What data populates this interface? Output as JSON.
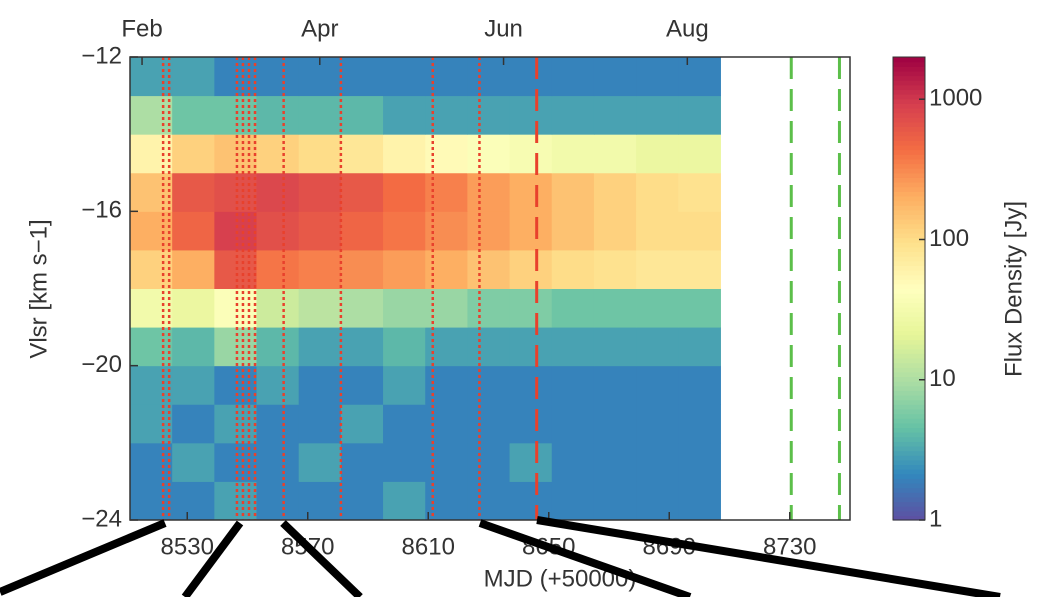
{
  "chart_data": {
    "type": "heatmap",
    "xlabel": "MJD (+50000)",
    "ylabel": "Vlsr [km s−1]",
    "colorbar_label": "Flux Density [Jy]",
    "xlim": [
      8511,
      8750
    ],
    "xticks": [
      8530,
      8570,
      8610,
      8650,
      8690,
      8730
    ],
    "x2ticks": [
      {
        "value": 8515,
        "label": "Feb"
      },
      {
        "value": 8574,
        "label": "Apr"
      },
      {
        "value": 8635,
        "label": "Jun"
      },
      {
        "value": 8696,
        "label": "Aug"
      }
    ],
    "ylim": [
      -24,
      -12
    ],
    "yticks": [
      {
        "value": -12,
        "label": "−12"
      },
      {
        "value": -16,
        "label": "−16"
      },
      {
        "value": -20,
        "label": "−20"
      },
      {
        "value": -24,
        "label": "−24"
      }
    ],
    "clim": [
      1,
      2000
    ],
    "clog": true,
    "cticks": [
      1,
      10,
      100,
      1000
    ],
    "colormap": [
      "#5e4fa2",
      "#3288bd",
      "#66c2a5",
      "#abdda4",
      "#e6f598",
      "#ffffbf",
      "#fee08b",
      "#fdae61",
      "#f46d43",
      "#d53e4f",
      "#9e0142"
    ],
    "x_bins": [
      8511,
      8525,
      8539,
      8553,
      8567,
      8581,
      8595,
      8609,
      8623,
      8637,
      8651,
      8665,
      8679,
      8693,
      8707
    ],
    "y_bins": [
      -24,
      -23,
      -22,
      -21,
      -20,
      -19,
      -18,
      -17,
      -16,
      -15,
      -14,
      -13,
      -12
    ],
    "values": [
      [
        2,
        2,
        3,
        2,
        2,
        2,
        3,
        2,
        2,
        2,
        2,
        2,
        2,
        2
      ],
      [
        2,
        3,
        2,
        2,
        3,
        2,
        2,
        2,
        2,
        3,
        2,
        2,
        2,
        2
      ],
      [
        3,
        2,
        3,
        2,
        2,
        3,
        2,
        2,
        2,
        2,
        2,
        2,
        2,
        2
      ],
      [
        3,
        3,
        2,
        3,
        2,
        2,
        3,
        2,
        2,
        2,
        2,
        2,
        2,
        2
      ],
      [
        5,
        4,
        8,
        4,
        3,
        3,
        4,
        3,
        3,
        3,
        3,
        3,
        3,
        3
      ],
      [
        30,
        25,
        40,
        15,
        12,
        10,
        8,
        8,
        6,
        6,
        5,
        5,
        5,
        5
      ],
      [
        120,
        200,
        600,
        400,
        350,
        300,
        250,
        200,
        150,
        120,
        100,
        90,
        80,
        80
      ],
      [
        200,
        500,
        900,
        700,
        600,
        500,
        400,
        300,
        250,
        200,
        150,
        120,
        100,
        100
      ],
      [
        150,
        600,
        700,
        800,
        700,
        600,
        450,
        350,
        250,
        200,
        150,
        120,
        100,
        90
      ],
      [
        60,
        120,
        150,
        120,
        100,
        80,
        60,
        50,
        40,
        35,
        30,
        30,
        25,
        25
      ],
      [
        10,
        5,
        5,
        4,
        4,
        4,
        3,
        3,
        3,
        3,
        3,
        3,
        3,
        3
      ],
      [
        3,
        3,
        2,
        2,
        2,
        2,
        2,
        2,
        2,
        2,
        2,
        2,
        2,
        2
      ]
    ],
    "vlines": [
      {
        "x": 8522,
        "color": "#e8412c",
        "style": "dotted"
      },
      {
        "x": 8524,
        "color": "#e8412c",
        "style": "dotted"
      },
      {
        "x": 8546.5,
        "color": "#e8412c",
        "style": "dotted"
      },
      {
        "x": 8548.5,
        "color": "#e8412c",
        "style": "dotted"
      },
      {
        "x": 8550.5,
        "color": "#e8412c",
        "style": "dotted"
      },
      {
        "x": 8552.5,
        "color": "#e8412c",
        "style": "dotted"
      },
      {
        "x": 8562,
        "color": "#e8412c",
        "style": "dotted"
      },
      {
        "x": 8581,
        "color": "#e8412c",
        "style": "dotted"
      },
      {
        "x": 8611.5,
        "color": "#e8412c",
        "style": "dotted"
      },
      {
        "x": 8627,
        "color": "#e8412c",
        "style": "dotted"
      },
      {
        "x": 8646,
        "color": "#e8412c",
        "style": "dashed"
      },
      {
        "x": 8730.5,
        "color": "#5cbf4a",
        "style": "dashed"
      },
      {
        "x": 8746.5,
        "color": "#5cbf4a",
        "style": "dashed"
      }
    ]
  }
}
